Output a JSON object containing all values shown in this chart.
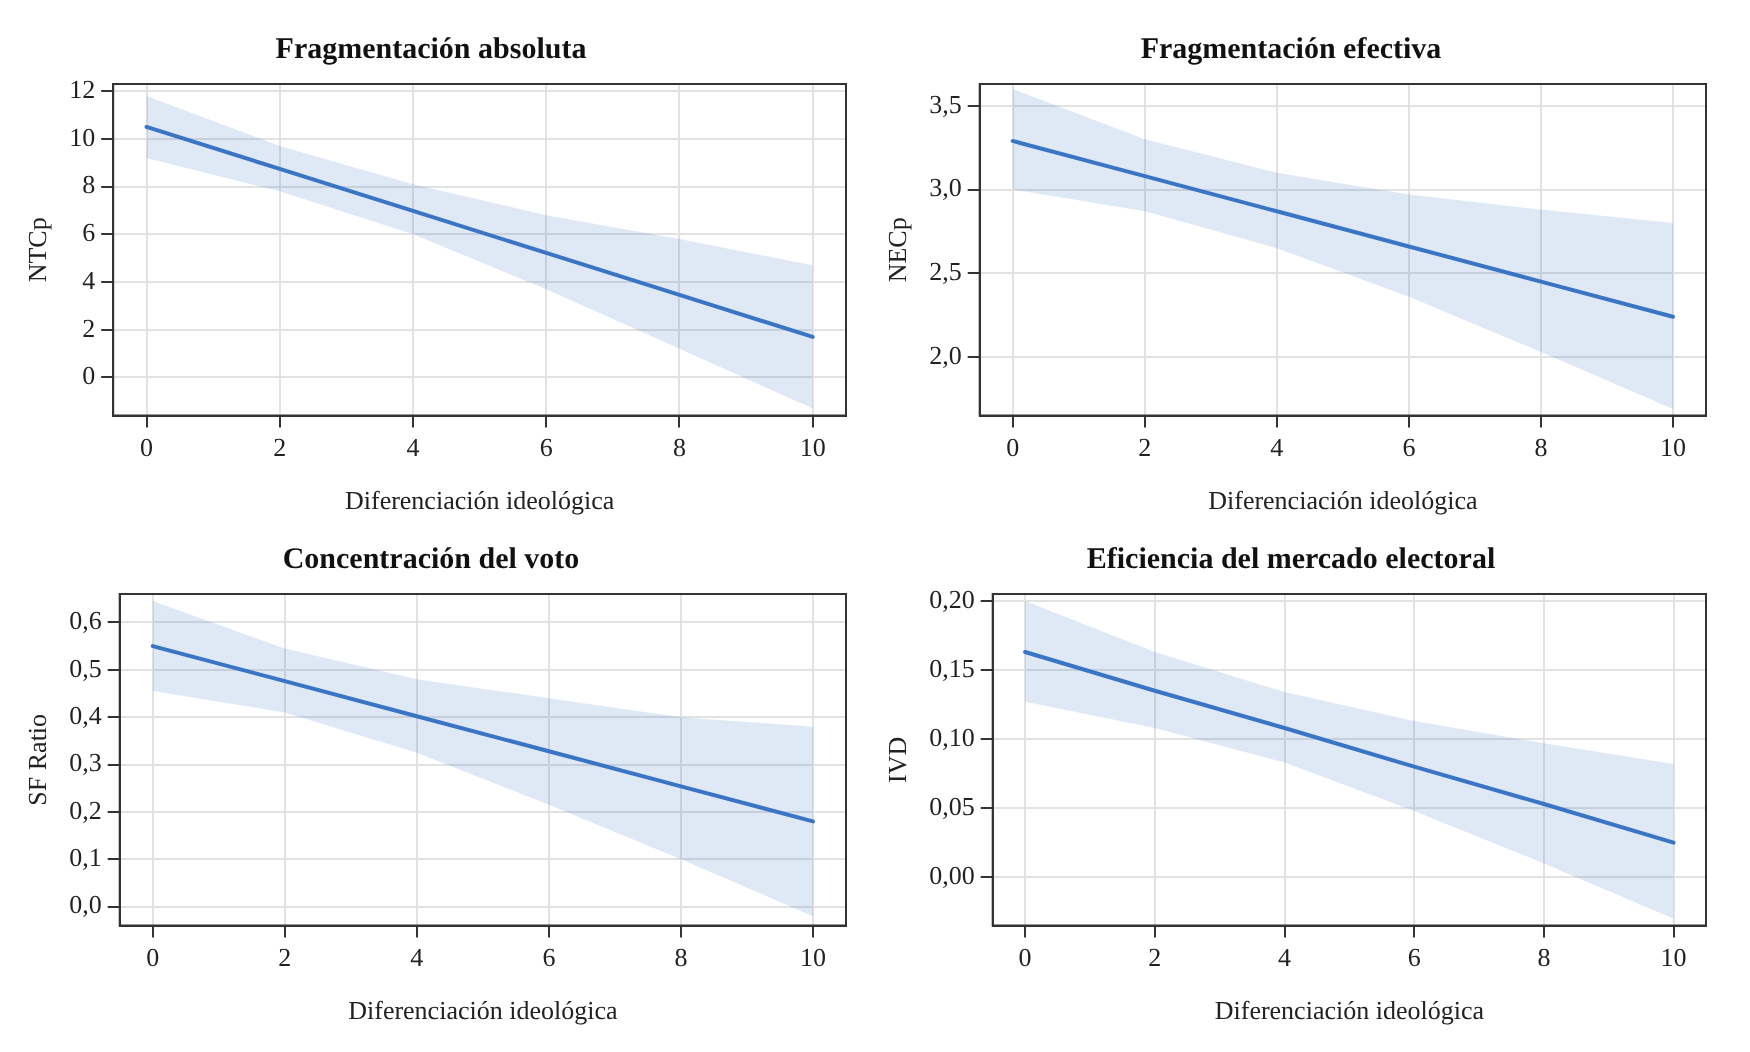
{
  "chart_data": [
    {
      "type": "line",
      "title": "Fragmentación absoluta",
      "xlabel": "Diferenciación ideológica",
      "ylabel": "NTCp",
      "xlim": [
        -0.5,
        10.5
      ],
      "xticks": [
        0,
        2,
        4,
        6,
        8,
        10
      ],
      "ylim": [
        -1.6,
        12.3
      ],
      "yticks": [
        0,
        2,
        4,
        6,
        8,
        10,
        12
      ],
      "grid": true,
      "legend": false,
      "marker": "none",
      "line_style": "solid",
      "series": [
        {
          "color": "#3a75c4",
          "x": [
            0,
            2,
            4,
            6,
            8,
            10
          ],
          "values": [
            10.5,
            8.74,
            6.98,
            5.22,
            3.46,
            1.7
          ],
          "lower": [
            9.2,
            7.8,
            6.0,
            3.7,
            1.2,
            -1.3
          ],
          "upper": [
            11.8,
            9.7,
            8.1,
            6.8,
            5.8,
            4.7
          ]
        }
      ]
    },
    {
      "type": "line",
      "title": "Fragmentación efectiva",
      "xlabel": "Diferenciación ideológica",
      "ylabel": "NECp",
      "xlim": [
        -0.5,
        10.5
      ],
      "xticks": [
        0,
        2,
        4,
        6,
        8,
        10
      ],
      "ylim": [
        1.65,
        3.63
      ],
      "yticks": [
        {
          "value": 2.0,
          "label": "2,0"
        },
        {
          "value": 2.5,
          "label": "2,5"
        },
        {
          "value": 3.0,
          "label": "3,0"
        },
        {
          "value": 3.5,
          "label": "3,5"
        }
      ],
      "grid": true,
      "legend": false,
      "marker": "none",
      "line_style": "solid",
      "series": [
        {
          "color": "#3a75c4",
          "x": [
            0,
            2,
            4,
            6,
            8,
            10
          ],
          "values": [
            3.29,
            3.08,
            2.87,
            2.66,
            2.45,
            2.24
          ],
          "lower": [
            3.0,
            2.87,
            2.65,
            2.36,
            2.03,
            1.69
          ],
          "upper": [
            3.6,
            3.3,
            3.1,
            2.97,
            2.88,
            2.8
          ]
        }
      ]
    },
    {
      "type": "line",
      "title": "Concentración del voto",
      "xlabel": "Diferenciación ideológica",
      "ylabel": "SF Ratio",
      "xlim": [
        -0.5,
        10.5
      ],
      "xticks": [
        0,
        2,
        4,
        6,
        8,
        10
      ],
      "ylim": [
        -0.04,
        0.66
      ],
      "yticks": [
        {
          "value": 0,
          "label": "0,0"
        },
        {
          "value": 0.1,
          "label": "0,1"
        },
        {
          "value": 0.2,
          "label": "0,2"
        },
        {
          "value": 0.3,
          "label": "0,3"
        },
        {
          "value": 0.4,
          "label": "0,4"
        },
        {
          "value": 0.5,
          "label": "0,5"
        },
        {
          "value": 0.6,
          "label": "0,6"
        }
      ],
      "grid": true,
      "legend": false,
      "marker": "none",
      "line_style": "solid",
      "series": [
        {
          "color": "#3a75c4",
          "x": [
            0,
            2,
            4,
            6,
            8,
            10
          ],
          "values": [
            0.55,
            0.476,
            0.402,
            0.328,
            0.254,
            0.18
          ],
          "lower": [
            0.455,
            0.41,
            0.325,
            0.215,
            0.1,
            -0.02
          ],
          "upper": [
            0.645,
            0.545,
            0.48,
            0.44,
            0.4,
            0.38
          ]
        }
      ]
    },
    {
      "type": "line",
      "title": "Eficiencia del mercado electoral",
      "xlabel": "Diferenciación ideológica",
      "ylabel": "IVD",
      "xlim": [
        -0.5,
        10.5
      ],
      "xticks": [
        0,
        2,
        4,
        6,
        8,
        10
      ],
      "ylim": [
        -0.035,
        0.205
      ],
      "yticks": [
        {
          "value": 0,
          "label": "0,00"
        },
        {
          "value": 0.05,
          "label": "0,05"
        },
        {
          "value": 0.1,
          "label": "0,10"
        },
        {
          "value": 0.15,
          "label": "0,15"
        },
        {
          "value": 0.2,
          "label": "0,20"
        }
      ],
      "grid": true,
      "legend": false,
      "marker": "none",
      "line_style": "solid",
      "series": [
        {
          "color": "#3a75c4",
          "x": [
            0,
            2,
            4,
            6,
            8,
            10
          ],
          "values": [
            0.163,
            0.135,
            0.108,
            0.08,
            0.053,
            0.025
          ],
          "lower": [
            0.127,
            0.108,
            0.083,
            0.048,
            0.01,
            -0.03
          ],
          "upper": [
            0.2,
            0.163,
            0.134,
            0.113,
            0.097,
            0.082
          ]
        }
      ]
    }
  ]
}
